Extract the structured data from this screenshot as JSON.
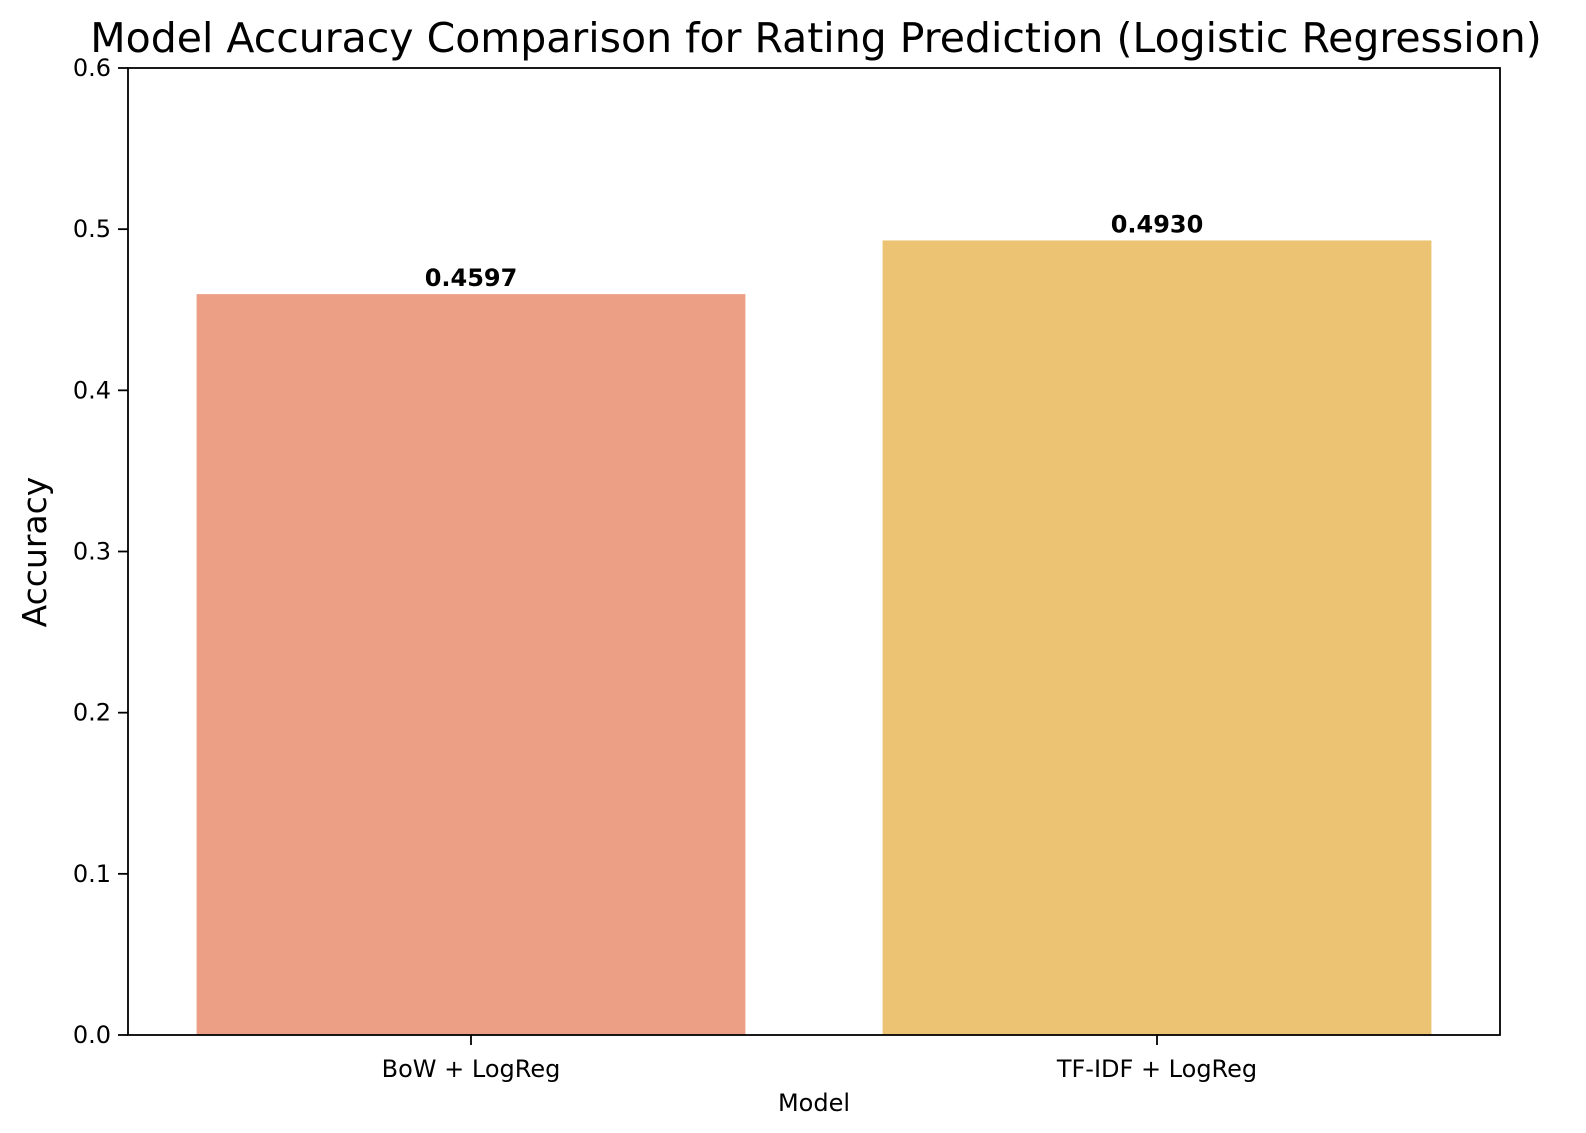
{
  "chart_data": {
    "type": "bar",
    "title": "Model Accuracy Comparison for Rating Prediction (Logistic Regression)",
    "xlabel": "Model",
    "ylabel": "Accuracy",
    "categories": [
      "BoW + LogReg",
      "TF-IDF + LogReg"
    ],
    "values": [
      0.4597,
      0.493
    ],
    "data_labels": [
      "0.4597",
      "0.4930"
    ],
    "colors": [
      "#EC9F85",
      "#EBC373"
    ],
    "ylim": [
      0,
      0.6
    ],
    "yticks": [
      0.0,
      0.1,
      0.2,
      0.3,
      0.4,
      0.5,
      0.6
    ],
    "ytick_labels": [
      "0.0",
      "0.1",
      "0.2",
      "0.3",
      "0.4",
      "0.5",
      "0.6"
    ],
    "grid": false,
    "legend": "none"
  }
}
